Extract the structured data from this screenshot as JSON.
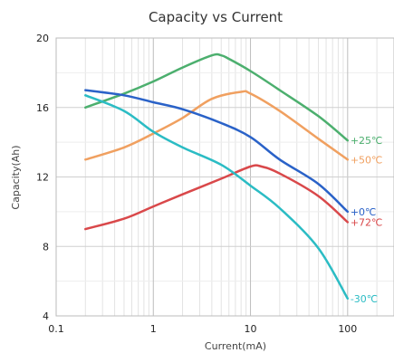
{
  "chart_data": {
    "type": "line",
    "title": "Capacity vs Current",
    "xlabel": "Current(mA)",
    "ylabel": "Capacity(Ah)",
    "x_scale": "log",
    "xlim": [
      0.1,
      300
    ],
    "ylim": [
      4,
      20
    ],
    "x_ticks": [
      {
        "value": 0.1,
        "label": "0.1"
      },
      {
        "value": 1,
        "label": "1"
      },
      {
        "value": 10,
        "label": "10"
      },
      {
        "value": 100,
        "label": "100"
      }
    ],
    "y_ticks": [
      {
        "value": 4,
        "label": "4"
      },
      {
        "value": 8,
        "label": "8"
      },
      {
        "value": 12,
        "label": "12"
      },
      {
        "value": 16,
        "label": "16"
      },
      {
        "value": 20,
        "label": "20"
      }
    ],
    "grid": true,
    "legend": "labels at line ends",
    "series": [
      {
        "name": "+25℃",
        "color": "#4caf6e",
        "points": [
          [
            0.2,
            16.0
          ],
          [
            0.5,
            16.8
          ],
          [
            1,
            17.5
          ],
          [
            2,
            18.3
          ],
          [
            4,
            19.0
          ],
          [
            5,
            19.0
          ],
          [
            6,
            18.8
          ],
          [
            10,
            18.1
          ],
          [
            20,
            17.0
          ],
          [
            50,
            15.5
          ],
          [
            100,
            14.1
          ]
        ]
      },
      {
        "name": "+50℃",
        "color": "#f0a060",
        "points": [
          [
            0.2,
            13.0
          ],
          [
            0.5,
            13.7
          ],
          [
            1,
            14.5
          ],
          [
            2,
            15.4
          ],
          [
            4,
            16.5
          ],
          [
            8,
            16.9
          ],
          [
            10,
            16.8
          ],
          [
            20,
            15.8
          ],
          [
            50,
            14.2
          ],
          [
            100,
            13.0
          ]
        ]
      },
      {
        "name": "+0℃",
        "color": "#2a62c8",
        "points": [
          [
            0.2,
            17.0
          ],
          [
            0.5,
            16.7
          ],
          [
            1,
            16.3
          ],
          [
            2,
            15.9
          ],
          [
            5,
            15.1
          ],
          [
            10,
            14.3
          ],
          [
            20,
            13.0
          ],
          [
            50,
            11.6
          ],
          [
            100,
            10.0
          ]
        ]
      },
      {
        "name": "+72℃",
        "color": "#d9484a",
        "points": [
          [
            0.2,
            9.0
          ],
          [
            0.5,
            9.6
          ],
          [
            1,
            10.3
          ],
          [
            2,
            11.0
          ],
          [
            5,
            11.9
          ],
          [
            10,
            12.6
          ],
          [
            13,
            12.6
          ],
          [
            20,
            12.2
          ],
          [
            50,
            10.9
          ],
          [
            100,
            9.4
          ]
        ]
      },
      {
        "name": "-30℃",
        "color": "#2bbcc4",
        "points": [
          [
            0.2,
            16.7
          ],
          [
            0.5,
            15.8
          ],
          [
            1,
            14.6
          ],
          [
            2,
            13.7
          ],
          [
            5,
            12.7
          ],
          [
            10,
            11.5
          ],
          [
            20,
            10.2
          ],
          [
            50,
            7.9
          ],
          [
            100,
            5.0
          ]
        ]
      }
    ]
  }
}
